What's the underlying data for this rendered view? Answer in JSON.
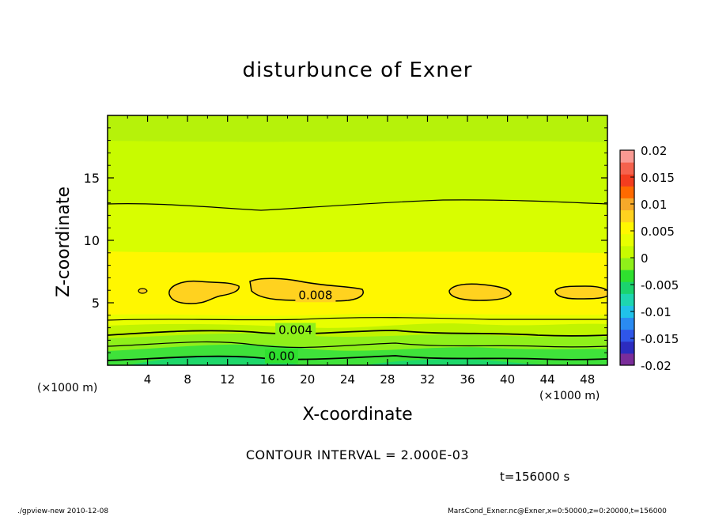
{
  "chart_data": {
    "type": "contour",
    "title": "disturbunce of Exner",
    "xlabel": "X-coordinate",
    "ylabel": "Z-coordinate",
    "x_unit": "(×1000 m)",
    "y_unit": "(×1000 m)",
    "xlim": [
      0,
      50
    ],
    "ylim": [
      0,
      20
    ],
    "x_ticks": [
      4,
      8,
      12,
      16,
      20,
      24,
      28,
      32,
      36,
      40,
      44,
      48
    ],
    "y_ticks": [
      5,
      10,
      15
    ],
    "contour_labels": [
      "0.008",
      "0.004",
      "0.00"
    ],
    "colorbar": {
      "tick_labels": [
        "0.02",
        "0.015",
        "0.01",
        "0.005",
        "0",
        "-0.005",
        "-0.01",
        "-0.015",
        "-0.02"
      ],
      "colors": [
        "#7a2d9a",
        "#2c2cbf",
        "#2f56e8",
        "#2a8bf2",
        "#20c2ea",
        "#1ed6b0",
        "#1bd36e",
        "#2fe02f",
        "#8ff01a",
        "#c8fb00",
        "#e8ff00",
        "#fff700",
        "#ffd21f",
        "#f6a92a",
        "#ff6a00",
        "#f33d1f",
        "#f5624d",
        "#f99a93"
      ]
    },
    "contour_interval": "CONTOUR INTERVAL = 2.000E-03",
    "time": "t=156000 s",
    "program": "./gpview-new  2010-12-08",
    "meta": "MarsCond_Exner.nc@Exner,x=0:50000,z=0:20000,t=156000"
  }
}
